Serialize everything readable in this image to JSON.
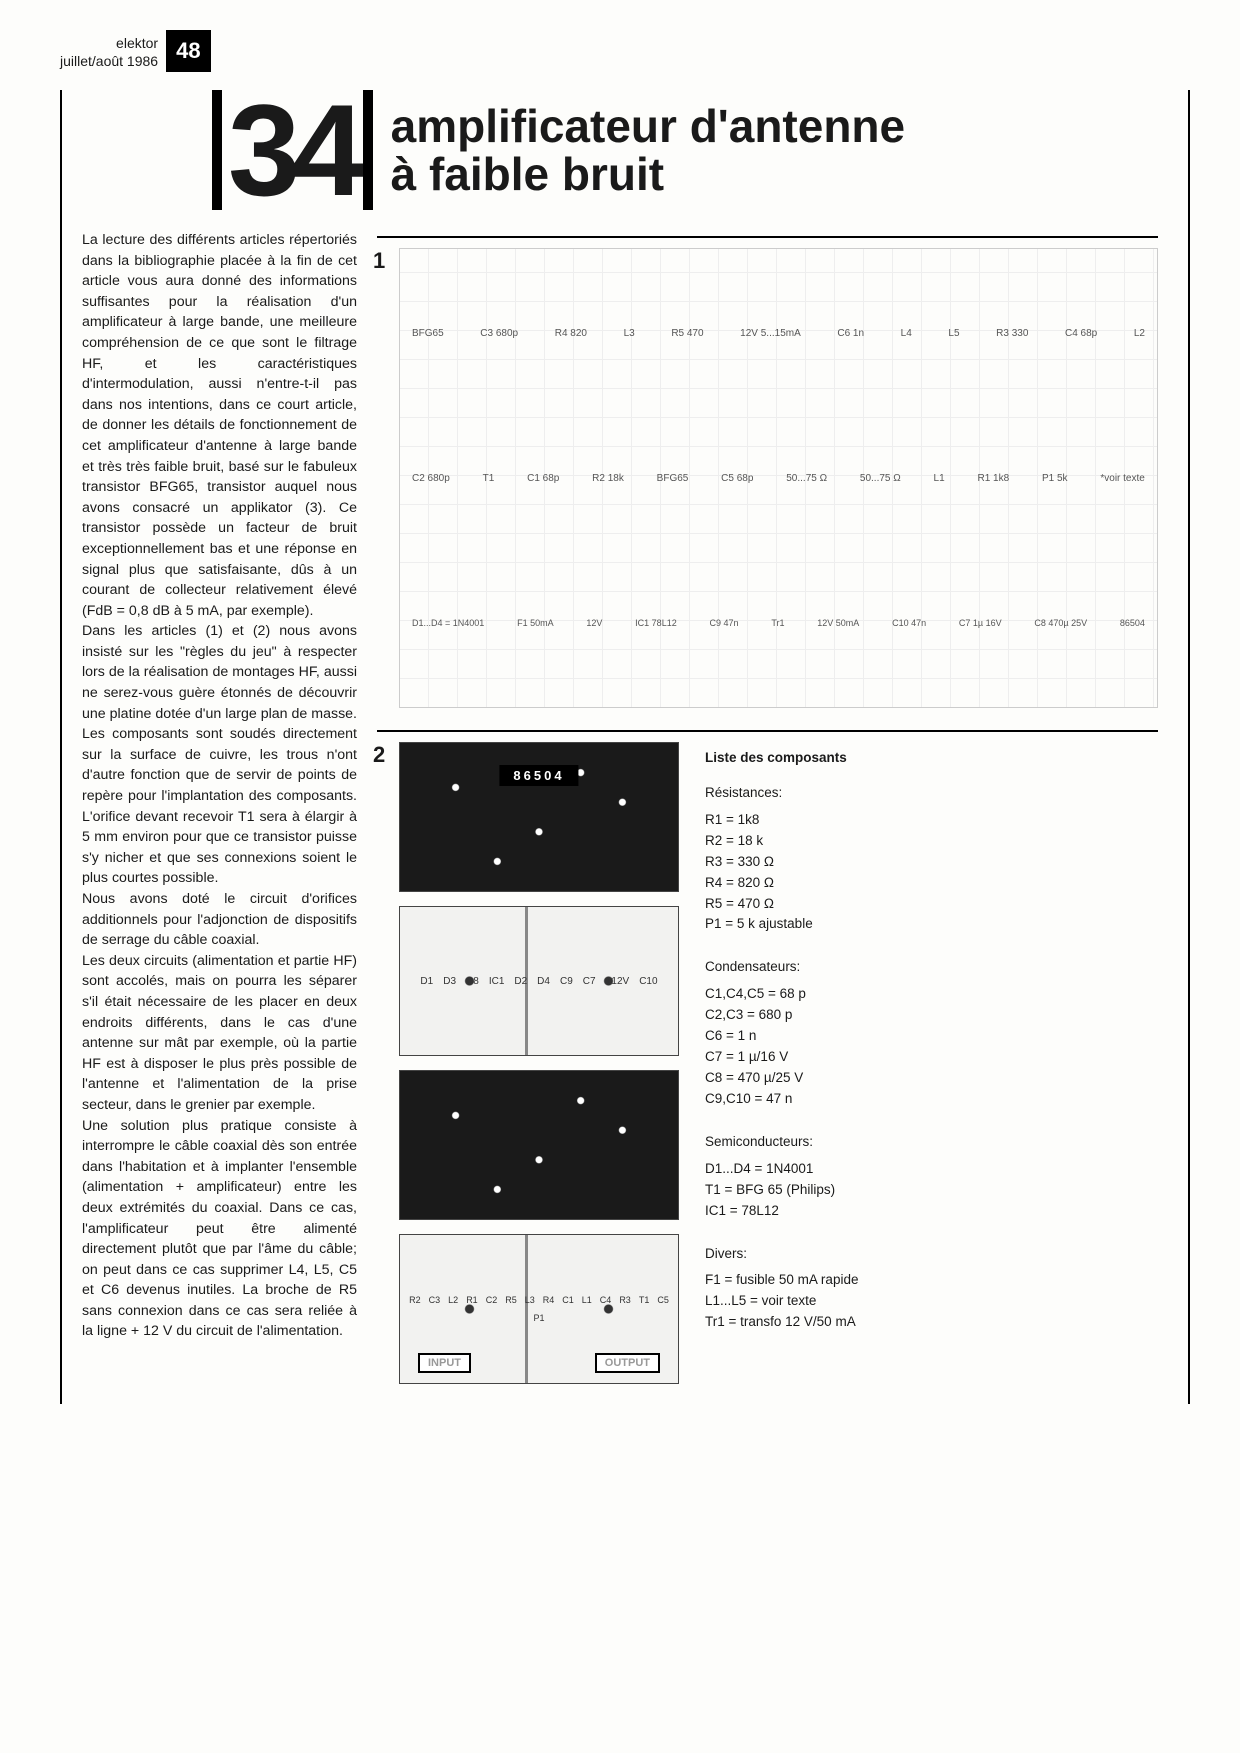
{
  "header": {
    "magazine": "elektor",
    "issue": "juillet/août 1986",
    "page_number": "48"
  },
  "article": {
    "number": "34",
    "title_line1": "amplificateur d'antenne",
    "title_line2": "à faible bruit"
  },
  "body_text": "La lecture des différents articles répertoriés dans la bibliographie placée à la fin de cet article vous aura donné des informations suffisantes pour la réalisation d'un amplificateur à large bande, une meilleure compréhension de ce que sont le filtrage HF, et les caractéristiques d'intermodulation, aussi n'entre-t-il pas dans nos intentions, dans ce court article, de donner les détails de fonctionnement de cet amplificateur d'antenne à large bande et très très faible bruit, basé sur le fabuleux transistor BFG65, transistor auquel nous avons consacré un applikator (3). Ce transistor possède un facteur de bruit exceptionnellement bas et une réponse en signal plus que satisfaisante, dûs à un courant de collecteur relativement élevé (FdB = 0,8 dB à 5 mA, par exemple).\nDans les articles (1) et (2) nous avons insisté sur les \"règles du jeu\" à respecter lors de la réalisation de montages HF, aussi ne serez-vous guère étonnés de découvrir une platine dotée d'un large plan de masse. Les composants sont soudés directement sur la surface de cuivre, les trous n'ont d'autre fonction que de servir de points de repère pour l'implantation des composants. L'orifice devant recevoir T1 sera à élargir à 5 mm environ pour que ce transistor puisse s'y nicher et que ses connexions soient le plus courtes possible.\nNous avons doté le circuit d'orifices additionnels pour l'adjonction de dispositifs de serrage du câble coaxial.\nLes deux circuits (alimentation et partie HF) sont accolés, mais on pourra les séparer s'il était nécessaire de les placer en deux endroits différents, dans le cas d'une antenne sur mât par exemple, où la partie HF est à disposer le plus près possible de l'antenne et l'alimentation de la prise secteur, dans le grenier par exemple.\nUne solution plus pratique consiste à interrompre le câble coaxial dès son entrée dans l'habitation et à implanter l'ensemble (alimentation + amplificateur) entre les deux extrémités du coaxial. Dans ce cas, l'amplificateur peut être alimenté directement plutôt que par l'âme du câble; on peut dans ce cas supprimer L4, L5, C5 et C6 devenus inutiles. La broche de R5 sans connexion dans ce cas sera reliée à la ligne + 12 V du circuit de l'alimentation.",
  "figures": {
    "fig1_label": "1",
    "fig2_label": "2",
    "schematic_refs": [
      "BFG65",
      "C3 680p",
      "R4 820",
      "L3",
      "R5 470",
      "12V  5...15mA",
      "C6 1n",
      "L4",
      "L5",
      "R3 330",
      "C4 68p",
      "L2",
      "C2 680p",
      "T1",
      "C1 68p",
      "R2 18k",
      "BFG65",
      "C5 68p",
      "50...75 Ω",
      "50...75 Ω",
      "L1",
      "R1 1k8",
      "P1 5k",
      "*voir texte",
      "D1...D4 = 1N4001",
      "F1  50mA",
      "12V",
      "IC1 78L12",
      "C9 47n",
      "Tr1",
      "12V 50mA",
      "C10 47n",
      "C7 1µ 16V",
      "C8 470µ 25V",
      "86504"
    ],
    "pcb_board_id": "86504",
    "pcb_silk_refs": [
      "D1",
      "D3",
      "C8",
      "IC1",
      "D2",
      "D4",
      "C9",
      "C7",
      "+12V",
      "C10"
    ],
    "pcb_io_input": "INPUT",
    "pcb_io_output": "OUTPUT",
    "pcb_comp_refs": [
      "R2",
      "C3",
      "L2",
      "R1",
      "C2",
      "R5",
      "L3",
      "R4",
      "C1",
      "L1",
      "C4",
      "R3",
      "T1",
      "C5",
      "P1"
    ]
  },
  "parts_list": {
    "heading": "Liste des composants",
    "groups": [
      {
        "title": "Résistances:",
        "items": [
          "R1 = 1k8",
          "R2 = 18 k",
          "R3 = 330 Ω",
          "R4 = 820 Ω",
          "R5 = 470 Ω",
          "P1 = 5 k ajustable"
        ]
      },
      {
        "title": "Condensateurs:",
        "items": [
          "C1,C4,C5 = 68 p",
          "C2,C3 = 680 p",
          "C6 = 1 n",
          "C7 = 1 µ/16 V",
          "C8 = 470 µ/25 V",
          "C9,C10 = 47 n"
        ]
      },
      {
        "title": "Semiconducteurs:",
        "items": [
          "D1...D4 = 1N4001",
          "T1 = BFG 65 (Philips)",
          "IC1 = 78L12"
        ]
      },
      {
        "title": "Divers:",
        "items": [
          "F1 = fusible 50 mA rapide",
          "L1...L5 = voir texte",
          "Tr1 = transfo 12 V/50 mA"
        ]
      }
    ]
  }
}
